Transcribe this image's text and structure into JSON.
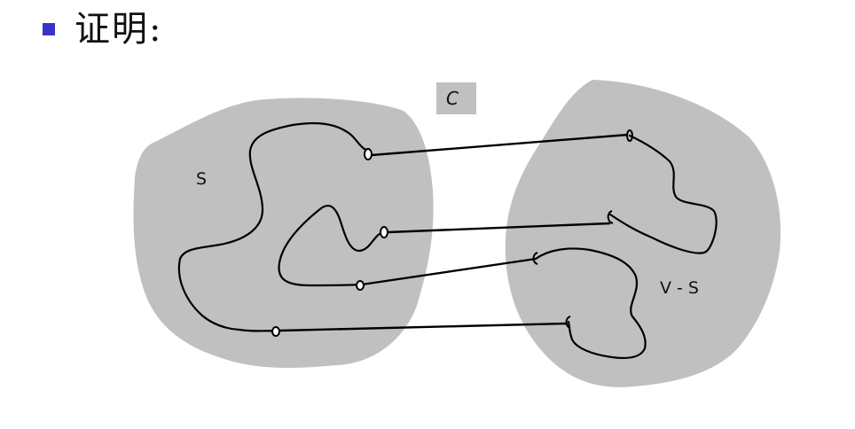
{
  "heading": {
    "text": "证明:",
    "bullet_color": "#3b32c8"
  },
  "diagram": {
    "cut_label": "C",
    "left_set_label": "S",
    "right_set_label": "V - S",
    "region_color": "#c0c0c0",
    "edge_color": "#000000",
    "crossing_edge_count": 4
  }
}
